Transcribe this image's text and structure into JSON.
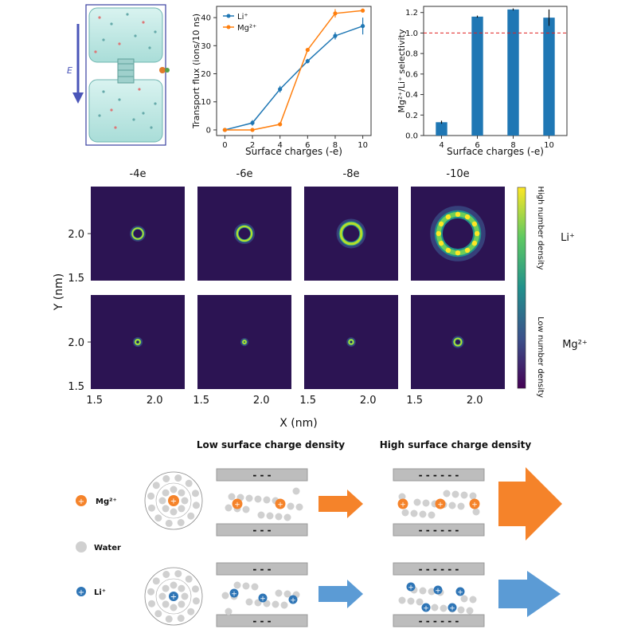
{
  "chart_data": [
    {
      "type": "line",
      "xlabel": "Surface charges (-e)",
      "ylabel": "Transport flux (ions/10 ns)",
      "x": [
        0,
        2,
        4,
        6,
        8,
        10
      ],
      "xticks": [
        "0",
        "2",
        "4",
        "6",
        "8",
        "10"
      ],
      "yticks": [
        "0",
        "10",
        "20",
        "30",
        "40"
      ],
      "xlim": [
        -0.6,
        10.6
      ],
      "ylim": [
        -2,
        44
      ],
      "legend": "top-left",
      "series": [
        {
          "name": "Li⁺",
          "color": "#1f77b4",
          "values": [
            0,
            2.5,
            14.5,
            24.5,
            33.5,
            37
          ],
          "errors": [
            0.3,
            1,
            1.2,
            0.8,
            1.3,
            3
          ]
        },
        {
          "name": "Mg²⁺",
          "color": "#ff7f0e",
          "values": [
            0,
            0,
            2,
            28.5,
            41.5,
            42.5
          ],
          "errors": [
            0,
            0,
            0,
            0.5,
            1.5,
            0.5
          ]
        }
      ]
    },
    {
      "type": "bar",
      "xlabel": "Surface charges (-e)",
      "ylabel": "Mg²⁺/Li⁺ selectivity",
      "categories": [
        "4",
        "6",
        "8",
        "10"
      ],
      "values": [
        0.13,
        1.16,
        1.23,
        1.15
      ],
      "errors": [
        0.015,
        0.01,
        0.01,
        0.08
      ],
      "color": "#1f77b4",
      "yticks": [
        "0.0",
        "0.2",
        "0.4",
        "0.6",
        "0.8",
        "1.0",
        "1.2"
      ],
      "ylim": [
        0,
        1.26
      ],
      "reference_line": {
        "y": 1.0,
        "color": "#e02020"
      }
    },
    {
      "type": "heatmap",
      "column_titles": [
        "-4e",
        "-6e",
        "-8e",
        "-10e"
      ],
      "row_labels": [
        "Li⁺",
        "Mg²⁺"
      ],
      "xlabel": "X (nm)",
      "ylabel": "Y (nm)",
      "xticks": [
        "1.5",
        "2.0"
      ],
      "yticks": [
        "2.0",
        "1.5"
      ],
      "colorbar_top": "High number density",
      "colorbar_bottom": "Low number density",
      "ring_radii_nm": [
        [
          0.045,
          0.06,
          0.085,
          0.16
        ],
        [
          0.02,
          0.008,
          0.018,
          0.03
        ]
      ]
    }
  ],
  "simulation_panel": {
    "field_label": "E"
  },
  "schematic": {
    "title_low": "Low surface charge density",
    "title_high": "High surface charge density",
    "legend": [
      {
        "label": "Mg²⁺",
        "color": "#f5832a",
        "symbol": "+"
      },
      {
        "label": "Water",
        "color": "#d0d0d0",
        "symbol": ""
      },
      {
        "label": "Li⁺",
        "color": "#2e75b6",
        "symbol": "+"
      }
    ],
    "wall_low_top": "-   -   -",
    "wall_low_bottom": "-   -   -",
    "wall_high_top": "- - - - - -",
    "wall_high_bottom": "- - - - - -",
    "colors": {
      "mg": "#f5832a",
      "li": "#2e75b6",
      "water": "#d0d0d0",
      "wall": "#bdbdbd",
      "arrow_mg": "#f5832a",
      "arrow_li": "#5b9bd5"
    }
  }
}
